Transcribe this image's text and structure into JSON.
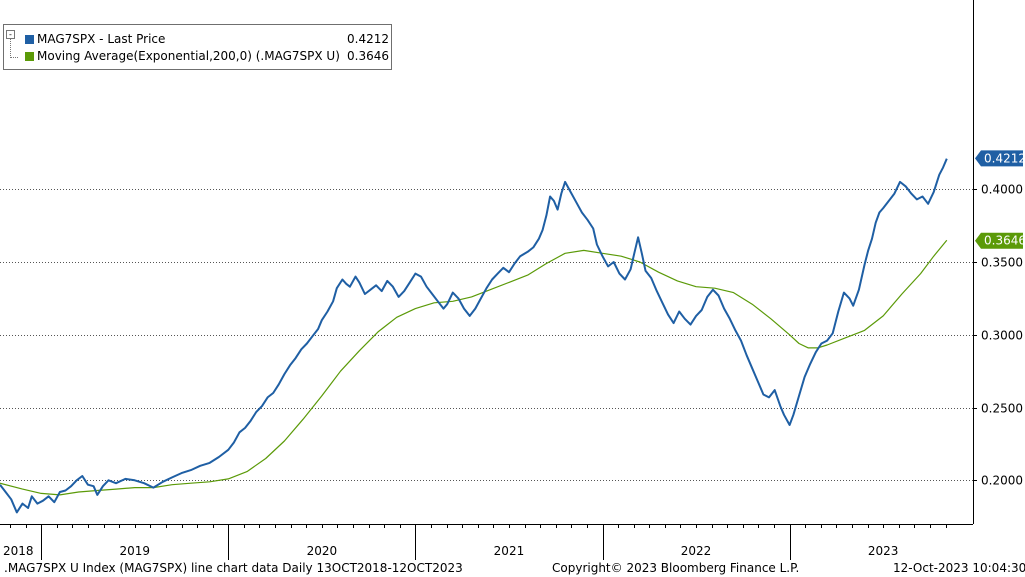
{
  "chart_data": {
    "type": "line",
    "ticker": ".MAG7SPX",
    "x_range": [
      "13-Oct-2018",
      "12-Oct-2023"
    ],
    "ylim": [
      0.17,
      0.53
    ],
    "y_ticks": [
      {
        "value": 0.2,
        "label": "0.2000"
      },
      {
        "value": 0.25,
        "label": "0.2500"
      },
      {
        "value": 0.3,
        "label": "0.3000"
      },
      {
        "value": 0.35,
        "label": "0.3500"
      },
      {
        "value": 0.4,
        "label": "0.4000"
      }
    ],
    "x_labels": [
      {
        "label": "2018",
        "at": 2018.78
      },
      {
        "label": "2019",
        "at": 2019.5
      },
      {
        "label": "2020",
        "at": 2020.5
      },
      {
        "label": "2021",
        "at": 2021.5
      },
      {
        "label": "2022",
        "at": 2022.5
      },
      {
        "label": "2023",
        "at": 2023.5
      }
    ],
    "year_boundaries": [
      2019,
      2020,
      2021,
      2022,
      2023
    ],
    "grid": true,
    "series": [
      {
        "name": "MAG7SPX - Last Price",
        "color": "#1f5fa4",
        "last_value": 0.4212,
        "last_label": "0.4212",
        "points": [
          [
            2018.78,
            0.197
          ],
          [
            2018.81,
            0.192
          ],
          [
            2018.84,
            0.187
          ],
          [
            2018.87,
            0.178
          ],
          [
            2018.9,
            0.184
          ],
          [
            2018.93,
            0.181
          ],
          [
            2018.95,
            0.189
          ],
          [
            2018.98,
            0.184
          ],
          [
            2019.01,
            0.186
          ],
          [
            2019.04,
            0.189
          ],
          [
            2019.07,
            0.185
          ],
          [
            2019.1,
            0.192
          ],
          [
            2019.13,
            0.193
          ],
          [
            2019.16,
            0.196
          ],
          [
            2019.19,
            0.2
          ],
          [
            2019.22,
            0.203
          ],
          [
            2019.25,
            0.197
          ],
          [
            2019.28,
            0.196
          ],
          [
            2019.3,
            0.19
          ],
          [
            2019.33,
            0.196
          ],
          [
            2019.36,
            0.2
          ],
          [
            2019.4,
            0.198
          ],
          [
            2019.45,
            0.201
          ],
          [
            2019.5,
            0.2
          ],
          [
            2019.55,
            0.198
          ],
          [
            2019.6,
            0.195
          ],
          [
            2019.65,
            0.199
          ],
          [
            2019.7,
            0.202
          ],
          [
            2019.75,
            0.205
          ],
          [
            2019.8,
            0.207
          ],
          [
            2019.85,
            0.21
          ],
          [
            2019.9,
            0.212
          ],
          [
            2019.95,
            0.216
          ],
          [
            2020.0,
            0.221
          ],
          [
            2020.03,
            0.226
          ],
          [
            2020.06,
            0.233
          ],
          [
            2020.09,
            0.236
          ],
          [
            2020.12,
            0.241
          ],
          [
            2020.15,
            0.247
          ],
          [
            2020.18,
            0.251
          ],
          [
            2020.21,
            0.257
          ],
          [
            2020.24,
            0.26
          ],
          [
            2020.27,
            0.266
          ],
          [
            2020.3,
            0.273
          ],
          [
            2020.33,
            0.279
          ],
          [
            2020.36,
            0.284
          ],
          [
            2020.39,
            0.29
          ],
          [
            2020.42,
            0.294
          ],
          [
            2020.45,
            0.299
          ],
          [
            2020.48,
            0.304
          ],
          [
            2020.5,
            0.31
          ],
          [
            2020.53,
            0.316
          ],
          [
            2020.56,
            0.323
          ],
          [
            2020.58,
            0.332
          ],
          [
            2020.61,
            0.338
          ],
          [
            2020.63,
            0.335
          ],
          [
            2020.65,
            0.333
          ],
          [
            2020.68,
            0.34
          ],
          [
            2020.7,
            0.336
          ],
          [
            2020.73,
            0.328
          ],
          [
            2020.76,
            0.331
          ],
          [
            2020.79,
            0.334
          ],
          [
            2020.82,
            0.33
          ],
          [
            2020.85,
            0.337
          ],
          [
            2020.88,
            0.333
          ],
          [
            2020.91,
            0.326
          ],
          [
            2020.94,
            0.33
          ],
          [
            2020.97,
            0.336
          ],
          [
            2021.0,
            0.342
          ],
          [
            2021.03,
            0.34
          ],
          [
            2021.06,
            0.333
          ],
          [
            2021.09,
            0.328
          ],
          [
            2021.12,
            0.323
          ],
          [
            2021.15,
            0.318
          ],
          [
            2021.17,
            0.321
          ],
          [
            2021.2,
            0.329
          ],
          [
            2021.23,
            0.325
          ],
          [
            2021.26,
            0.318
          ],
          [
            2021.29,
            0.313
          ],
          [
            2021.32,
            0.318
          ],
          [
            2021.35,
            0.325
          ],
          [
            2021.38,
            0.332
          ],
          [
            2021.41,
            0.338
          ],
          [
            2021.44,
            0.342
          ],
          [
            2021.47,
            0.346
          ],
          [
            2021.5,
            0.343
          ],
          [
            2021.53,
            0.349
          ],
          [
            2021.56,
            0.354
          ],
          [
            2021.6,
            0.357
          ],
          [
            2021.63,
            0.36
          ],
          [
            2021.66,
            0.366
          ],
          [
            2021.68,
            0.372
          ],
          [
            2021.7,
            0.382
          ],
          [
            2021.72,
            0.395
          ],
          [
            2021.74,
            0.392
          ],
          [
            2021.76,
            0.386
          ],
          [
            2021.78,
            0.397
          ],
          [
            2021.8,
            0.405
          ],
          [
            2021.83,
            0.398
          ],
          [
            2021.86,
            0.391
          ],
          [
            2021.89,
            0.384
          ],
          [
            2021.92,
            0.379
          ],
          [
            2021.95,
            0.373
          ],
          [
            2021.97,
            0.362
          ],
          [
            2022.0,
            0.354
          ],
          [
            2022.03,
            0.347
          ],
          [
            2022.06,
            0.35
          ],
          [
            2022.09,
            0.342
          ],
          [
            2022.12,
            0.338
          ],
          [
            2022.15,
            0.345
          ],
          [
            2022.17,
            0.356
          ],
          [
            2022.19,
            0.367
          ],
          [
            2022.21,
            0.356
          ],
          [
            2022.23,
            0.344
          ],
          [
            2022.26,
            0.339
          ],
          [
            2022.29,
            0.33
          ],
          [
            2022.32,
            0.322
          ],
          [
            2022.35,
            0.314
          ],
          [
            2022.38,
            0.308
          ],
          [
            2022.41,
            0.316
          ],
          [
            2022.44,
            0.311
          ],
          [
            2022.47,
            0.307
          ],
          [
            2022.5,
            0.313
          ],
          [
            2022.53,
            0.317
          ],
          [
            2022.56,
            0.326
          ],
          [
            2022.59,
            0.331
          ],
          [
            2022.62,
            0.327
          ],
          [
            2022.65,
            0.318
          ],
          [
            2022.68,
            0.311
          ],
          [
            2022.71,
            0.303
          ],
          [
            2022.74,
            0.296
          ],
          [
            2022.77,
            0.286
          ],
          [
            2022.8,
            0.277
          ],
          [
            2022.83,
            0.268
          ],
          [
            2022.86,
            0.259
          ],
          [
            2022.89,
            0.257
          ],
          [
            2022.92,
            0.262
          ],
          [
            2022.95,
            0.251
          ],
          [
            2022.97,
            0.245
          ],
          [
            2023.0,
            0.238
          ],
          [
            2023.02,
            0.245
          ],
          [
            2023.05,
            0.258
          ],
          [
            2023.08,
            0.271
          ],
          [
            2023.11,
            0.28
          ],
          [
            2023.14,
            0.288
          ],
          [
            2023.17,
            0.294
          ],
          [
            2023.2,
            0.296
          ],
          [
            2023.23,
            0.301
          ],
          [
            2023.26,
            0.316
          ],
          [
            2023.29,
            0.329
          ],
          [
            2023.32,
            0.325
          ],
          [
            2023.34,
            0.32
          ],
          [
            2023.37,
            0.331
          ],
          [
            2023.4,
            0.348
          ],
          [
            2023.42,
            0.358
          ],
          [
            2023.44,
            0.366
          ],
          [
            2023.46,
            0.377
          ],
          [
            2023.48,
            0.384
          ],
          [
            2023.5,
            0.387
          ],
          [
            2023.53,
            0.392
          ],
          [
            2023.56,
            0.397
          ],
          [
            2023.59,
            0.405
          ],
          [
            2023.62,
            0.402
          ],
          [
            2023.65,
            0.397
          ],
          [
            2023.68,
            0.393
          ],
          [
            2023.71,
            0.395
          ],
          [
            2023.74,
            0.39
          ],
          [
            2023.77,
            0.398
          ],
          [
            2023.8,
            0.41
          ],
          [
            2023.82,
            0.415
          ],
          [
            2023.84,
            0.421
          ]
        ]
      },
      {
        "name": "Moving Average(Exponential,200,0) (.MAG7SPX U)",
        "color": "#5b9a08",
        "last_value": 0.3646,
        "last_label": "0.3646",
        "points": [
          [
            2018.78,
            0.198
          ],
          [
            2018.9,
            0.194
          ],
          [
            2019.0,
            0.191
          ],
          [
            2019.1,
            0.19
          ],
          [
            2019.2,
            0.192
          ],
          [
            2019.3,
            0.193
          ],
          [
            2019.4,
            0.194
          ],
          [
            2019.5,
            0.195
          ],
          [
            2019.6,
            0.195
          ],
          [
            2019.7,
            0.197
          ],
          [
            2019.8,
            0.198
          ],
          [
            2019.9,
            0.199
          ],
          [
            2020.0,
            0.201
          ],
          [
            2020.1,
            0.206
          ],
          [
            2020.2,
            0.215
          ],
          [
            2020.3,
            0.227
          ],
          [
            2020.4,
            0.242
          ],
          [
            2020.5,
            0.258
          ],
          [
            2020.6,
            0.275
          ],
          [
            2020.7,
            0.289
          ],
          [
            2020.8,
            0.302
          ],
          [
            2020.9,
            0.312
          ],
          [
            2021.0,
            0.318
          ],
          [
            2021.1,
            0.322
          ],
          [
            2021.2,
            0.323
          ],
          [
            2021.3,
            0.326
          ],
          [
            2021.4,
            0.331
          ],
          [
            2021.5,
            0.336
          ],
          [
            2021.6,
            0.341
          ],
          [
            2021.7,
            0.349
          ],
          [
            2021.8,
            0.356
          ],
          [
            2021.9,
            0.358
          ],
          [
            2022.0,
            0.356
          ],
          [
            2022.1,
            0.354
          ],
          [
            2022.2,
            0.35
          ],
          [
            2022.3,
            0.343
          ],
          [
            2022.4,
            0.337
          ],
          [
            2022.5,
            0.333
          ],
          [
            2022.6,
            0.332
          ],
          [
            2022.7,
            0.329
          ],
          [
            2022.8,
            0.321
          ],
          [
            2022.9,
            0.311
          ],
          [
            2023.0,
            0.3
          ],
          [
            2023.05,
            0.294
          ],
          [
            2023.1,
            0.291
          ],
          [
            2023.15,
            0.291
          ],
          [
            2023.2,
            0.293
          ],
          [
            2023.3,
            0.298
          ],
          [
            2023.4,
            0.303
          ],
          [
            2023.5,
            0.313
          ],
          [
            2023.6,
            0.328
          ],
          [
            2023.7,
            0.342
          ],
          [
            2023.77,
            0.354
          ],
          [
            2023.84,
            0.365
          ]
        ]
      }
    ]
  },
  "legend": [
    {
      "label": "MAG7SPX - Last Price",
      "value": "0.4212",
      "color": "#1f5fa4"
    },
    {
      "label": "Moving Average(Exponential,200,0) (.MAG7SPX U)",
      "value": "0.3646",
      "color": "#5b9a08"
    }
  ],
  "footer": {
    "left": ".MAG7SPX U Index (MAG7SPX) line chart data  Daily 13OCT2018-12OCT2023",
    "center": "Copyright© 2023 Bloomberg Finance L.P.",
    "right": "12-Oct-2023 10:04:30"
  }
}
